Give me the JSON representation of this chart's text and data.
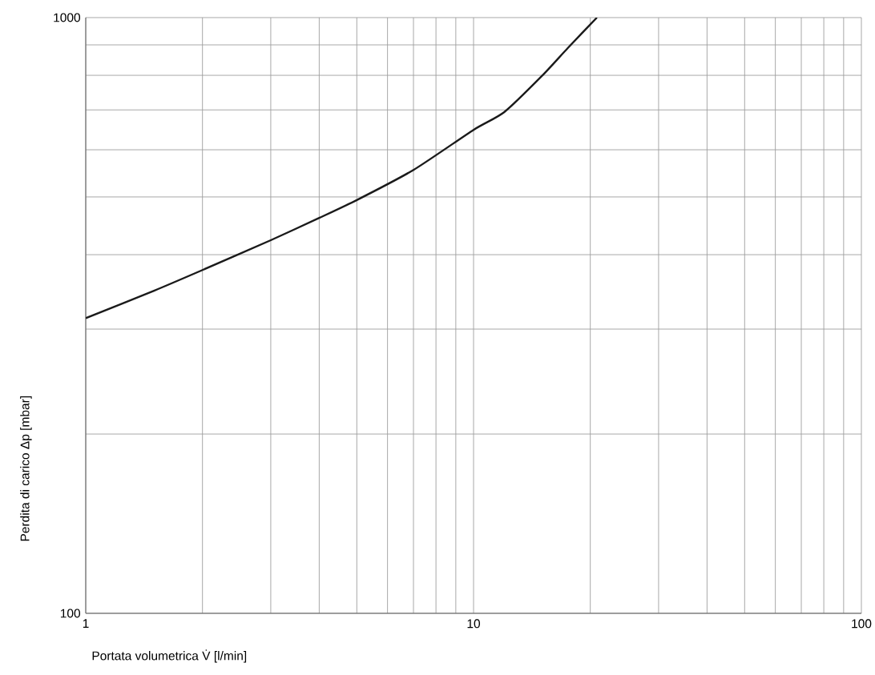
{
  "chart_data": {
    "type": "line",
    "xlabel": "Portata volumetrica V̇ [l/min]",
    "ylabel": "Perdita di carico Δp [mbar]",
    "log": "xy",
    "xlim": [
      1,
      100
    ],
    "ylim": [
      100,
      1000
    ],
    "xticks": [
      1,
      10,
      100
    ],
    "yticks": [
      100,
      1000
    ],
    "grid": true,
    "legend": false,
    "marker": "none",
    "line_style": "solid",
    "series": [
      {
        "color": "#1a1a1a",
        "x": [
          1,
          1.5,
          2,
          3,
          4,
          5,
          7,
          10,
          12,
          15,
          17.5,
          20.8
        ],
        "values": [
          313,
          348,
          377,
          423,
          461,
          494,
          555,
          648,
          694,
          798,
          889,
          1000
        ]
      }
    ]
  }
}
